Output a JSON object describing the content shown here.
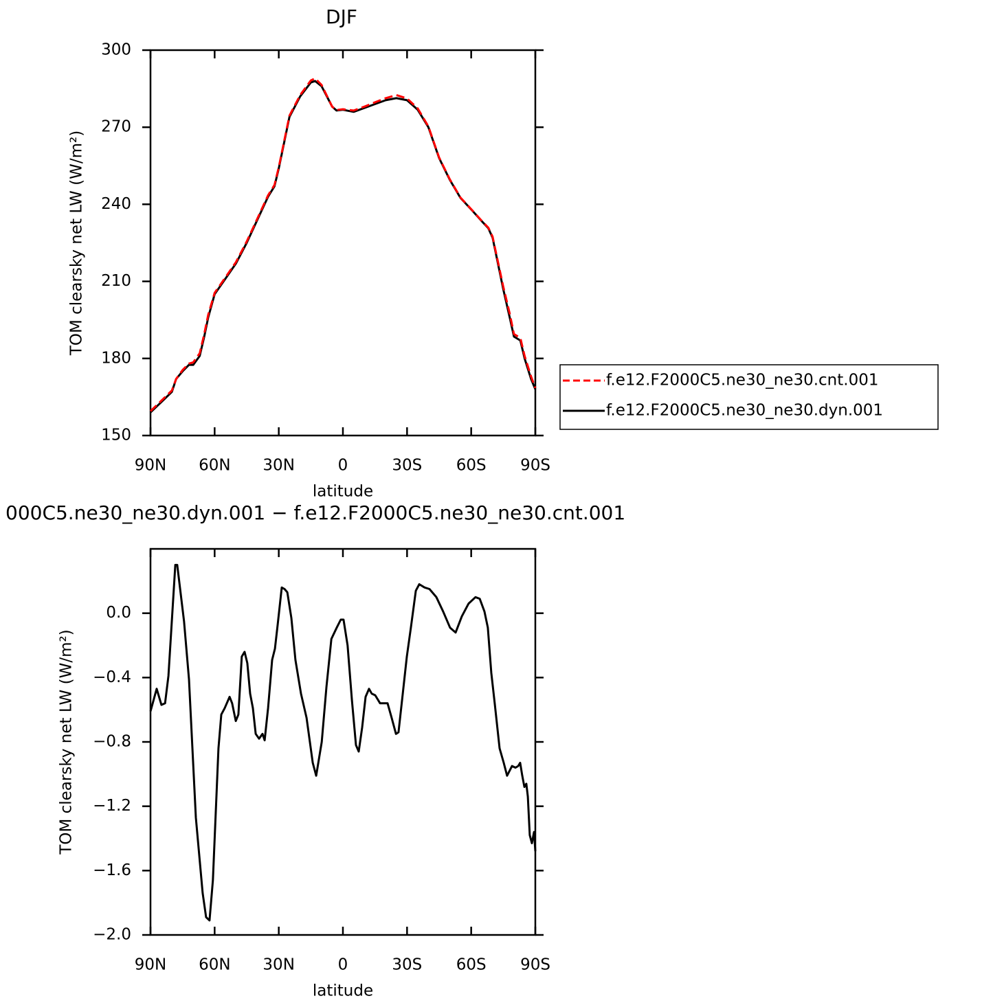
{
  "chart_data": [
    {
      "type": "line",
      "title": "DJF",
      "xlabel": "latitude",
      "ylabel": "TOM clearsky net LW (W/m²)",
      "x": [
        90,
        85,
        80,
        78,
        75,
        72,
        70,
        67,
        65,
        63,
        60,
        55,
        50,
        45,
        40,
        35,
        32,
        30,
        25,
        20,
        15,
        13,
        10,
        5,
        3,
        0,
        -5,
        -10,
        -15,
        -20,
        -25,
        -30,
        -35,
        -40,
        -45,
        -50,
        -55,
        -60,
        -65,
        -68,
        -70,
        -75,
        -78,
        -80,
        -83,
        -85,
        -88,
        -90
      ],
      "series": [
        {
          "name": "f.e12.F2000C5.ne30_ne30.cnt.001",
          "color": "#ff0000",
          "style": "dashed",
          "values": [
            159.5,
            163.5,
            167.5,
            172,
            175.5,
            178,
            178.5,
            182,
            189,
            197,
            205.5,
            211.5,
            217.5,
            225.5,
            234.5,
            243.5,
            247.5,
            254.5,
            274.5,
            282.5,
            288.2,
            289,
            286.5,
            278,
            276.7,
            277,
            276.5,
            278,
            279.7,
            281.3,
            282.5,
            281.2,
            277.3,
            270.3,
            258.2,
            249.7,
            242.6,
            238.1,
            233.5,
            230.9,
            227.4,
            208,
            197.5,
            189.5,
            188,
            181,
            173,
            168.5
          ]
        },
        {
          "name": "f.e12.F2000C5.ne30_ne30.dyn.001",
          "color": "#000000",
          "style": "solid",
          "values": [
            159,
            163,
            167,
            172,
            175,
            177.5,
            177.5,
            181,
            188,
            196,
            205,
            211,
            217,
            225,
            234,
            243,
            247,
            254,
            274,
            282,
            287.4,
            288,
            286,
            278,
            276.5,
            276.8,
            276,
            277.5,
            279,
            280.5,
            281.3,
            280.5,
            276.8,
            270,
            258,
            249.5,
            242.5,
            238,
            233.4,
            230.7,
            227,
            207,
            196,
            188.5,
            187,
            180,
            172,
            168
          ]
        }
      ],
      "xlim": [
        90,
        -90
      ],
      "xticks": [
        {
          "value": 90,
          "label": "90N"
        },
        {
          "value": 60,
          "label": "60N"
        },
        {
          "value": 30,
          "label": "30N"
        },
        0,
        {
          "value": -30,
          "label": "30S"
        },
        {
          "value": -60,
          "label": "60S"
        },
        {
          "value": -90,
          "label": "90S"
        }
      ],
      "ylim": [
        150,
        300
      ],
      "yticks": [
        150,
        180,
        210,
        240,
        270,
        300
      ],
      "legend": "right"
    },
    {
      "type": "line",
      "title": "000C5.ne30_ne30.dyn.001 − f.e12.F2000C5.ne30_ne30.cnt.001",
      "xlabel": "latitude",
      "ylabel": "TOM clearsky net LW (W/m²)",
      "x": [
        90,
        87.1,
        84.9,
        83.2,
        81.6,
        78.4,
        77.5,
        74.3,
        72,
        68.8,
        65.6,
        64,
        62.4,
        60.8,
        58.2,
        56.9,
        55.3,
        53,
        51.8,
        50.1,
        48.9,
        47.3,
        46,
        44.7,
        43.4,
        42.1,
        40.8,
        39.2,
        37.6,
        36.6,
        35,
        33.1,
        31.8,
        30.5,
        28.6,
        27.3,
        26,
        24.1,
        22.2,
        19.6,
        17,
        14.1,
        12.5,
        9.9,
        7.7,
        5.4,
        2.9,
        1,
        -0.3,
        -2.2,
        -4.2,
        -6.1,
        -7.4,
        -9,
        -10.6,
        -12.2,
        -13.5,
        -15.1,
        -17.4,
        -19,
        -20.9,
        -22.8,
        -24.8,
        -26,
        -28,
        -29.9,
        -31.8,
        -34.1,
        -35.7,
        -38.2,
        -40.5,
        -43.7,
        -46.9,
        -50.1,
        -52.7,
        -55.6,
        -58.8,
        -62,
        -64,
        -66.2,
        -67.8,
        -69.4,
        -71,
        -73.3,
        -75.2,
        -76.8,
        -79.1,
        -80.7,
        -82,
        -82.9,
        -83.9,
        -84.9,
        -85.8,
        -86.5,
        -87.4,
        -88.4,
        -89.4,
        -90
      ],
      "values": [
        -0.61,
        -0.47,
        -0.57,
        -0.56,
        -0.39,
        0.3,
        0.3,
        -0.05,
        -0.41,
        -1.27,
        -1.74,
        -1.89,
        -1.91,
        -1.66,
        -0.84,
        -0.63,
        -0.59,
        -0.52,
        -0.56,
        -0.67,
        -0.63,
        -0.27,
        -0.24,
        -0.31,
        -0.5,
        -0.59,
        -0.75,
        -0.78,
        -0.75,
        -0.79,
        -0.59,
        -0.29,
        -0.22,
        -0.07,
        0.16,
        0.15,
        0.13,
        -0.03,
        -0.29,
        -0.5,
        -0.65,
        -0.93,
        -1.01,
        -0.8,
        -0.46,
        -0.16,
        -0.09,
        -0.04,
        -0.04,
        -0.2,
        -0.54,
        -0.82,
        -0.86,
        -0.71,
        -0.52,
        -0.47,
        -0.5,
        -0.51,
        -0.56,
        -0.56,
        -0.56,
        -0.65,
        -0.75,
        -0.74,
        -0.5,
        -0.27,
        -0.09,
        0.14,
        0.18,
        0.16,
        0.15,
        0.1,
        0.01,
        -0.09,
        -0.12,
        -0.02,
        0.06,
        0.1,
        0.09,
        0.01,
        -0.09,
        -0.37,
        -0.56,
        -0.84,
        -0.93,
        -1.01,
        -0.95,
        -0.96,
        -0.95,
        -0.93,
        -1.01,
        -1.08,
        -1.06,
        -1.14,
        -1.38,
        -1.43,
        -1.36,
        -1.48
      ],
      "color": "#000000",
      "xlim": [
        90,
        -90
      ],
      "xticks": [
        {
          "value": 90,
          "label": "90N"
        },
        {
          "value": 60,
          "label": "60N"
        },
        {
          "value": 30,
          "label": "30N"
        },
        0,
        {
          "value": -30,
          "label": "30S"
        },
        {
          "value": -60,
          "label": "60S"
        },
        {
          "value": -90,
          "label": "90S"
        }
      ],
      "ylim": [
        -2.0,
        0.4
      ],
      "yticks": [
        {
          "value": -2.0,
          "label": "−2.0"
        },
        {
          "value": -1.6,
          "label": "−1.6"
        },
        {
          "value": -1.2,
          "label": "−1.2"
        },
        {
          "value": -0.8,
          "label": "−0.8"
        },
        {
          "value": -0.4,
          "label": "−0.4"
        },
        {
          "value": 0,
          "label": "0.0"
        }
      ]
    }
  ]
}
